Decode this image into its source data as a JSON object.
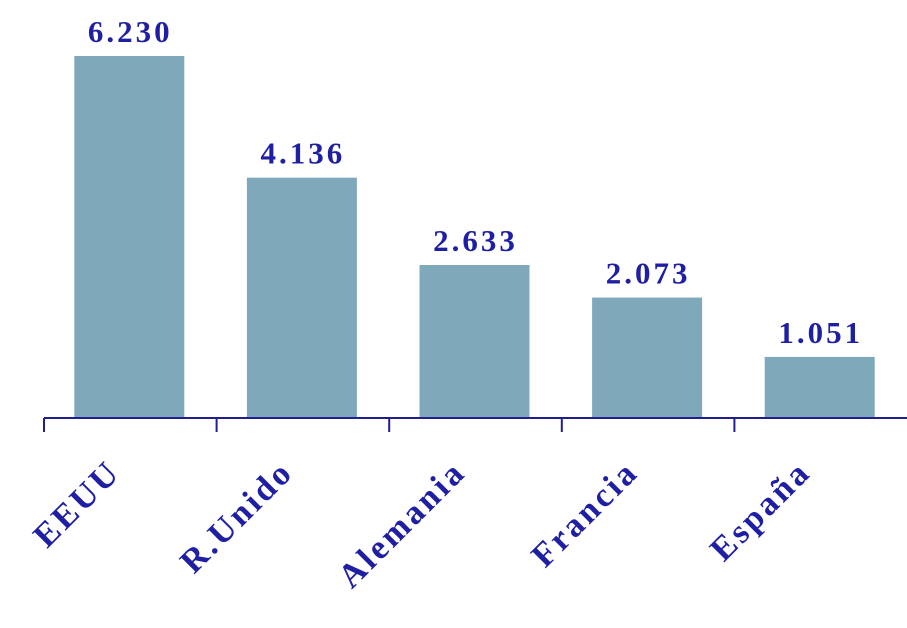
{
  "colors": {
    "bar": "#7FA9BA",
    "text": "#1F1FA3",
    "axis": "#1F1F8F"
  },
  "chart_data": {
    "type": "bar",
    "categories": [
      "EEUU",
      "R.Unido",
      "Alemania",
      "Francia",
      "España"
    ],
    "values": [
      6230,
      4136,
      2633,
      2073,
      1051
    ],
    "data_labels": [
      "6.230",
      "4.136",
      "2.633",
      "2.073",
      "1.051"
    ],
    "title": "",
    "xlabel": "",
    "ylabel": "",
    "ylim": [
      0,
      6230
    ],
    "grid": false,
    "legend": "none"
  }
}
